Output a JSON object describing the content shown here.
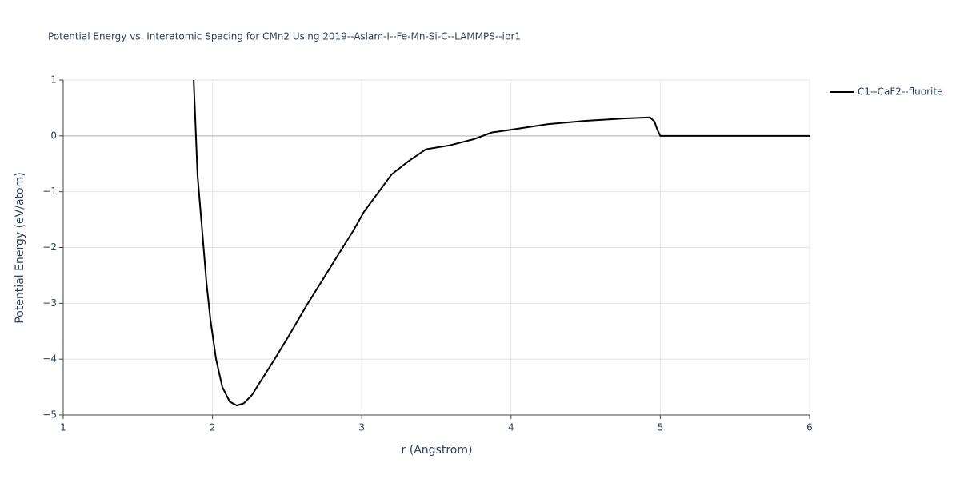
{
  "chart_data": {
    "type": "line",
    "title": "Potential Energy vs. Interatomic Spacing for CMn2 Using 2019--Aslam-I--Fe-Mn-Si-C--LAMMPS--ipr1",
    "xlabel": "r (Angstrom)",
    "ylabel": "Potential Energy (eV/atom)",
    "xlim": [
      1,
      6
    ],
    "ylim": [
      -5,
      1
    ],
    "xticks": [
      1,
      2,
      3,
      4,
      5,
      6
    ],
    "yticks": [
      {
        "value": -5,
        "label": "−5"
      },
      {
        "value": -4,
        "label": "−4"
      },
      {
        "value": -3,
        "label": "−3"
      },
      {
        "value": -2,
        "label": "−2"
      },
      {
        "value": -1,
        "label": "−1"
      },
      0,
      1
    ],
    "grid": true,
    "legend": "top-right",
    "series": [
      {
        "name": "C1--CaF2--fluorite",
        "color": "#000000",
        "x": [
          1.874,
          1.9,
          1.927,
          1.96,
          1.986,
          2.024,
          2.066,
          2.115,
          2.163,
          2.21,
          2.265,
          2.3,
          2.4,
          2.51,
          2.63,
          2.74,
          2.84,
          2.945,
          3.015,
          3.095,
          3.2,
          3.31,
          3.43,
          3.59,
          3.75,
          3.87,
          4.0,
          4.25,
          4.5,
          4.75,
          4.93,
          4.96,
          4.98,
          5.0,
          6.0
        ],
        "values": [
          1.0,
          -0.71,
          -1.57,
          -2.64,
          -3.29,
          -4.0,
          -4.5,
          -4.76,
          -4.83,
          -4.79,
          -4.64,
          -4.49,
          -4.07,
          -3.59,
          -3.04,
          -2.57,
          -2.14,
          -1.69,
          -1.36,
          -1.07,
          -0.69,
          -0.46,
          -0.24,
          -0.17,
          -0.06,
          0.06,
          0.11,
          0.21,
          0.27,
          0.31,
          0.33,
          0.26,
          0.11,
          0,
          0
        ]
      }
    ]
  }
}
